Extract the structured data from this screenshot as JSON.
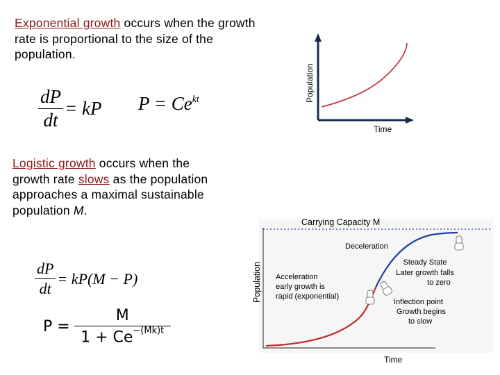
{
  "exponential": {
    "term": "Exponential growth",
    "rest": " occurs when the growth rate is proportional to the size of the population.",
    "eq1": {
      "num": "dP",
      "den": "dt",
      "rhs": "= kP"
    },
    "eq2": {
      "lhs": "P = Ce",
      "exp": "kt"
    }
  },
  "logistic": {
    "term": "Logistic growth",
    "mid1": " occurs when the growth rate ",
    "slows": "slows",
    "mid2": " as the population approaches a maximal sustainable population ",
    "M": "M",
    "end": ".",
    "eq1": {
      "num": "dP",
      "den": "dt",
      "rhs": "= kP(M − P)"
    },
    "eq2": {
      "lhs": "P =",
      "num": "M",
      "den_base": "1 + Ce",
      "den_exp": "−(Mk)t"
    }
  },
  "exp_chart": {
    "xlabel": "Time",
    "ylabel": "Population",
    "curve_color": "#c0393b",
    "axis_color": "#1a2a4a"
  },
  "logistic_chart": {
    "title": "Carrying Capacity M",
    "xlabel": "Time",
    "ylabel": "Population",
    "deceleration": "Deceleration",
    "steady": [
      "Steady State",
      "Later growth falls",
      "to zero"
    ],
    "acceleration": [
      "Acceleration",
      "early growth is",
      "rapid (exponential)"
    ],
    "inflection": [
      "Inflection point",
      "Growth begins",
      "to slow"
    ],
    "colors": {
      "early": "#c0282a",
      "late": "#1f3f9c",
      "capacity_line": "#1f3f9c"
    }
  }
}
